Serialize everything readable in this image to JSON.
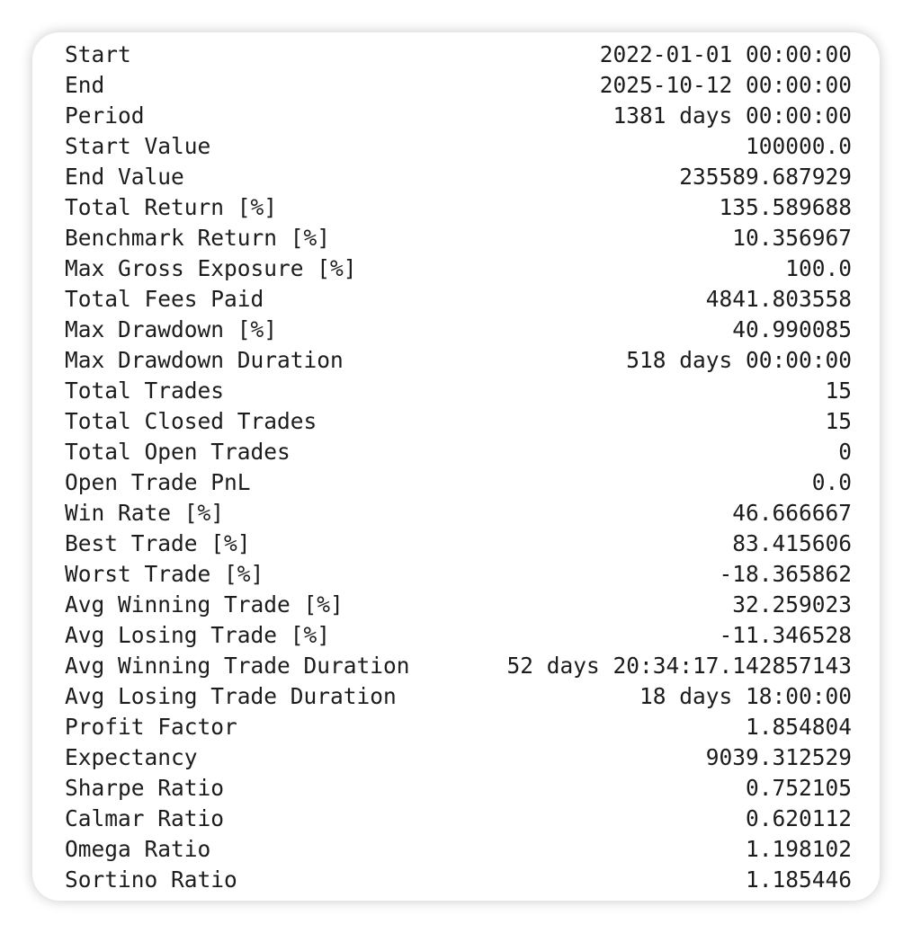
{
  "stats": [
    {
      "label": "Start",
      "value": "2022-01-01 00:00:00"
    },
    {
      "label": "End",
      "value": "2025-10-12 00:00:00"
    },
    {
      "label": "Period",
      "value": "1381 days 00:00:00"
    },
    {
      "label": "Start Value",
      "value": "100000.0"
    },
    {
      "label": "End Value",
      "value": "235589.687929"
    },
    {
      "label": "Total Return [%]",
      "value": "135.589688"
    },
    {
      "label": "Benchmark Return [%]",
      "value": "10.356967"
    },
    {
      "label": "Max Gross Exposure [%]",
      "value": "100.0"
    },
    {
      "label": "Total Fees Paid",
      "value": "4841.803558"
    },
    {
      "label": "Max Drawdown [%]",
      "value": "40.990085"
    },
    {
      "label": "Max Drawdown Duration",
      "value": "518 days 00:00:00"
    },
    {
      "label": "Total Trades",
      "value": "15"
    },
    {
      "label": "Total Closed Trades",
      "value": "15"
    },
    {
      "label": "Total Open Trades",
      "value": "0"
    },
    {
      "label": "Open Trade PnL",
      "value": "0.0"
    },
    {
      "label": "Win Rate [%]",
      "value": "46.666667"
    },
    {
      "label": "Best Trade [%]",
      "value": "83.415606"
    },
    {
      "label": "Worst Trade [%]",
      "value": "-18.365862"
    },
    {
      "label": "Avg Winning Trade [%]",
      "value": "32.259023"
    },
    {
      "label": "Avg Losing Trade [%]",
      "value": "-11.346528"
    },
    {
      "label": "Avg Winning Trade Duration",
      "value": "52 days 20:34:17.142857143"
    },
    {
      "label": "Avg Losing Trade Duration",
      "value": "18 days 18:00:00"
    },
    {
      "label": "Profit Factor",
      "value": "1.854804"
    },
    {
      "label": "Expectancy",
      "value": "9039.312529"
    },
    {
      "label": "Sharpe Ratio",
      "value": "0.752105"
    },
    {
      "label": "Calmar Ratio",
      "value": "0.620112"
    },
    {
      "label": "Omega Ratio",
      "value": "1.198102"
    },
    {
      "label": "Sortino Ratio",
      "value": "1.185446"
    }
  ]
}
